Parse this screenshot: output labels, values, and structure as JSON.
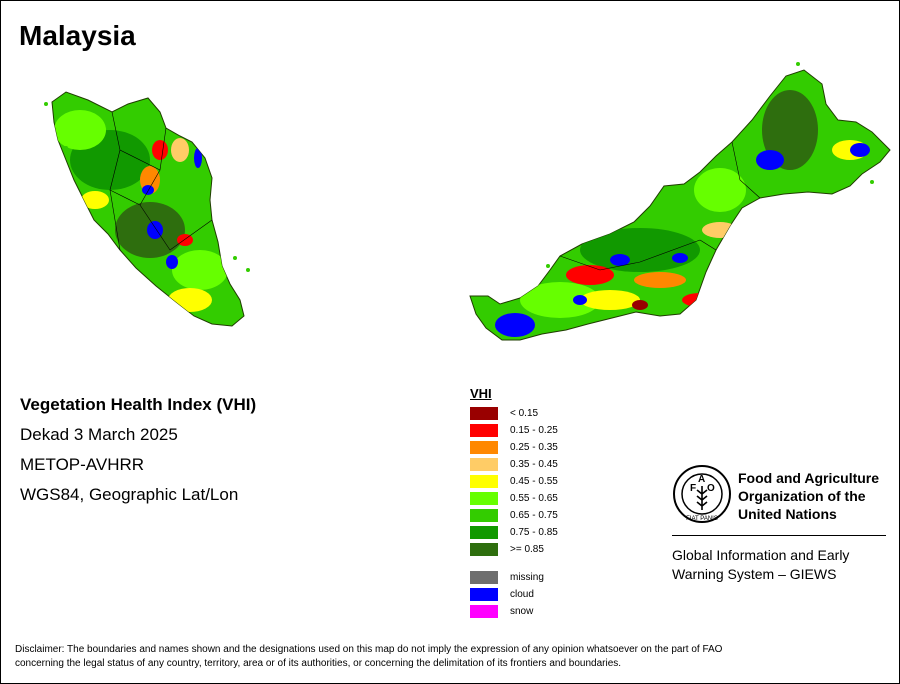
{
  "map": {
    "title": "Malaysia"
  },
  "info": {
    "index_name": "Vegetation Health Index (VHI)",
    "period": "Dekad 3 March 2025",
    "sensor": "METOP-AVHRR",
    "projection": "WGS84, Geographic Lat/Lon"
  },
  "legend": {
    "title": "VHI",
    "classes": [
      {
        "label": "< 0.15",
        "color": "#990000"
      },
      {
        "label": "0.15 - 0.25",
        "color": "#ff0000"
      },
      {
        "label": "0.25 - 0.35",
        "color": "#ff8800"
      },
      {
        "label": "0.35 - 0.45",
        "color": "#ffcc66"
      },
      {
        "label": "0.45 - 0.55",
        "color": "#ffff00"
      },
      {
        "label": "0.55 - 0.65",
        "color": "#66ff00"
      },
      {
        "label": "0.65 - 0.75",
        "color": "#33cc00"
      },
      {
        "label": "0.75 - 0.85",
        "color": "#119900"
      },
      {
        "label": ">= 0.85",
        "color": "#2e6e0e"
      }
    ],
    "other": [
      {
        "label": "missing",
        "color": "#6e6e6e"
      },
      {
        "label": "cloud",
        "color": "#0000ff"
      },
      {
        "label": "snow",
        "color": "#ff00ff"
      }
    ]
  },
  "organization": {
    "name_line1": "Food and Agriculture",
    "name_line2": "Organization of the",
    "name_line3": "United Nations",
    "system_line1": "Global Information and Early",
    "system_line2": "Warning System – GIEWS",
    "logo_text": "FIAT PANIS"
  },
  "disclaimer": {
    "line1": "Disclaimer: The boundaries and names shown and the designations used on this map do not imply the expression of any opinion whatsoever on the part of FAO",
    "line2": "concerning the legal status of any country, territory, area or of its authorities, or concerning the delimitation of its frontiers and boundaries."
  }
}
